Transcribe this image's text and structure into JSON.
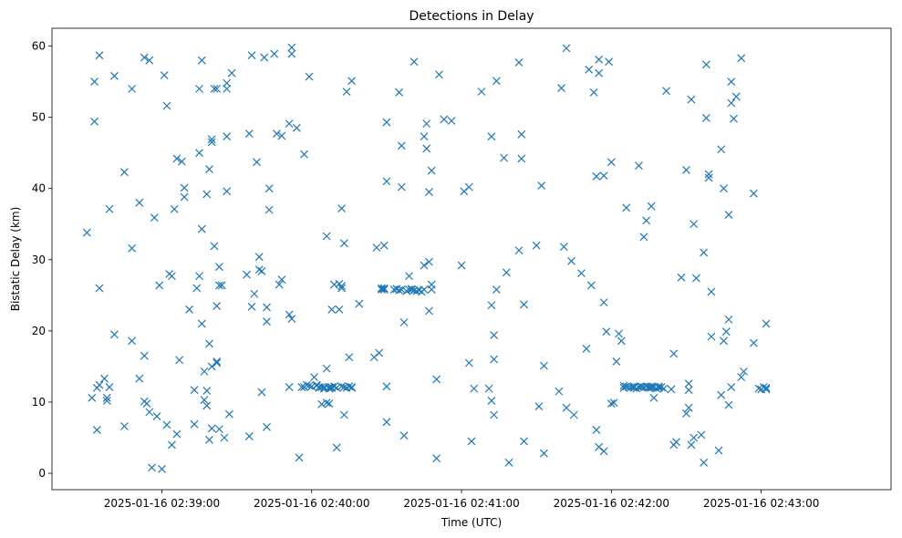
{
  "chart_data": {
    "type": "scatter",
    "title": "Detections in Delay",
    "xlabel": "Time (UTC)",
    "ylabel": "Bistatic Delay (km)",
    "x_unit": "seconds after 2025-01-16 02:38:00",
    "xlim": [
      16,
      352
    ],
    "ylim": [
      -2.3,
      62.5
    ],
    "x_ticks": [
      {
        "value": 60,
        "label": "2025-01-16 02:39:00"
      },
      {
        "value": 120,
        "label": "2025-01-16 02:40:00"
      },
      {
        "value": 180,
        "label": "2025-01-16 02:41:00"
      },
      {
        "value": 240,
        "label": "2025-01-16 02:42:00"
      },
      {
        "value": 300,
        "label": "2025-01-16 02:43:00"
      }
    ],
    "y_ticks": [
      0,
      10,
      20,
      30,
      40,
      50,
      60
    ],
    "grid": false,
    "marker": "x",
    "color": "#1f77b4",
    "points": [
      [
        30,
        33.8
      ],
      [
        32,
        10.6
      ],
      [
        33,
        49.4
      ],
      [
        33,
        55
      ],
      [
        34,
        6.1
      ],
      [
        34,
        12
      ],
      [
        35,
        12.4
      ],
      [
        35,
        26
      ],
      [
        35,
        58.7
      ],
      [
        37,
        13.3
      ],
      [
        38,
        10.6
      ],
      [
        38,
        10.2
      ],
      [
        39,
        12.1
      ],
      [
        39,
        37.1
      ],
      [
        41,
        55.8
      ],
      [
        41,
        19.5
      ],
      [
        45,
        42.3
      ],
      [
        45,
        6.6
      ],
      [
        48,
        31.6
      ],
      [
        48,
        18.6
      ],
      [
        48,
        54
      ],
      [
        51,
        13.3
      ],
      [
        51,
        38
      ],
      [
        53,
        16.5
      ],
      [
        53,
        58.4
      ],
      [
        53,
        10.1
      ],
      [
        54,
        9.8
      ],
      [
        55,
        58
      ],
      [
        55,
        8.6
      ],
      [
        56,
        0.8
      ],
      [
        57,
        35.9
      ],
      [
        58,
        8
      ],
      [
        59,
        26.4
      ],
      [
        60,
        0.6
      ],
      [
        61,
        55.9
      ],
      [
        62,
        6.8
      ],
      [
        62,
        51.6
      ],
      [
        63,
        28
      ],
      [
        64,
        27.7
      ],
      [
        64,
        4
      ],
      [
        65,
        37.1
      ],
      [
        66,
        5.5
      ],
      [
        66,
        44.2
      ],
      [
        67,
        15.9
      ],
      [
        68,
        43.8
      ],
      [
        69,
        38.8
      ],
      [
        69,
        40.1
      ],
      [
        71,
        23
      ],
      [
        73,
        6.9
      ],
      [
        73,
        11.7
      ],
      [
        74,
        26
      ],
      [
        75,
        27.7
      ],
      [
        75,
        45
      ],
      [
        75,
        54
      ],
      [
        76,
        58
      ],
      [
        76,
        34.3
      ],
      [
        76,
        21
      ],
      [
        77,
        10.3
      ],
      [
        77,
        14.3
      ],
      [
        78,
        11.6
      ],
      [
        78,
        9.5
      ],
      [
        78,
        39.2
      ],
      [
        79,
        4.7
      ],
      [
        79,
        18.2
      ],
      [
        79,
        42.7
      ],
      [
        80,
        46.9
      ],
      [
        80,
        6.3
      ],
      [
        80,
        15
      ],
      [
        80,
        46.5
      ],
      [
        81,
        54
      ],
      [
        81,
        31.9
      ],
      [
        82,
        54
      ],
      [
        82,
        15.5
      ],
      [
        82,
        15.7
      ],
      [
        82,
        23.5
      ],
      [
        83,
        26.4
      ],
      [
        83,
        29
      ],
      [
        83,
        6.2
      ],
      [
        84,
        26.4
      ],
      [
        85,
        5
      ],
      [
        86,
        54.8
      ],
      [
        86,
        54
      ],
      [
        86,
        47.3
      ],
      [
        86,
        39.6
      ],
      [
        87,
        8.3
      ],
      [
        88,
        56.2
      ],
      [
        94,
        27.9
      ],
      [
        95,
        47.7
      ],
      [
        95,
        5.2
      ],
      [
        96,
        58.7
      ],
      [
        96,
        23.4
      ],
      [
        97,
        25.2
      ],
      [
        98,
        43.7
      ],
      [
        99,
        30.4
      ],
      [
        99,
        28.6
      ],
      [
        100,
        28.4
      ],
      [
        100,
        11.4
      ],
      [
        101,
        58.4
      ],
      [
        102,
        6.5
      ],
      [
        102,
        23.3
      ],
      [
        102,
        21.3
      ],
      [
        103,
        40
      ],
      [
        103,
        37
      ],
      [
        105,
        58.9
      ],
      [
        106,
        47.7
      ],
      [
        107,
        26.5
      ],
      [
        108,
        27.2
      ],
      [
        108,
        47.4
      ],
      [
        111,
        12.1
      ],
      [
        111,
        49.1
      ],
      [
        111,
        22.3
      ],
      [
        112,
        59.8
      ],
      [
        112,
        58.9
      ],
      [
        112,
        21.7
      ],
      [
        114,
        48.5
      ],
      [
        115,
        2.2
      ],
      [
        116,
        12.1
      ],
      [
        117,
        44.8
      ],
      [
        117,
        12.1
      ],
      [
        118,
        12.4
      ],
      [
        119,
        12.3
      ],
      [
        119,
        55.7
      ],
      [
        120,
        12.2
      ],
      [
        121,
        13.5
      ],
      [
        122,
        12.4
      ],
      [
        122,
        12.3
      ],
      [
        123,
        12
      ],
      [
        123,
        12.1
      ],
      [
        124,
        9.7
      ],
      [
        124,
        12.1
      ],
      [
        125,
        11.9
      ],
      [
        125,
        12.1
      ],
      [
        126,
        9.9
      ],
      [
        126,
        33.3
      ],
      [
        126,
        14.7
      ],
      [
        127,
        12.1
      ],
      [
        127,
        11.9
      ],
      [
        127,
        9.8
      ],
      [
        128,
        12.1
      ],
      [
        128,
        23
      ],
      [
        128,
        12
      ],
      [
        129,
        26.5
      ],
      [
        129,
        12.2
      ],
      [
        130,
        3.6
      ],
      [
        130,
        12
      ],
      [
        131,
        23
      ],
      [
        131,
        26.6
      ],
      [
        132,
        37.2
      ],
      [
        132,
        26.3
      ],
      [
        132,
        26
      ],
      [
        132,
        12.2
      ],
      [
        133,
        8.2
      ],
      [
        133,
        12.1
      ],
      [
        133,
        32.3
      ],
      [
        134,
        53.6
      ],
      [
        134,
        12
      ],
      [
        135,
        12.2
      ],
      [
        135,
        16.3
      ],
      [
        136,
        55.1
      ],
      [
        136,
        12
      ],
      [
        136,
        12.1
      ],
      [
        139,
        23.8
      ],
      [
        145,
        16.3
      ],
      [
        146,
        31.7
      ],
      [
        147,
        16.9
      ],
      [
        148,
        26
      ],
      [
        148,
        25.8
      ],
      [
        149,
        26
      ],
      [
        149,
        32
      ],
      [
        149,
        25.8
      ],
      [
        150,
        49.3
      ],
      [
        150,
        41
      ],
      [
        150,
        12.2
      ],
      [
        150,
        7.2
      ],
      [
        153,
        25.8
      ],
      [
        154,
        25.9
      ],
      [
        154,
        25.9
      ],
      [
        155,
        53.5
      ],
      [
        155,
        25.7
      ],
      [
        156,
        40.2
      ],
      [
        156,
        25.8
      ],
      [
        156,
        46
      ],
      [
        157,
        5.3
      ],
      [
        157,
        21.2
      ],
      [
        158,
        25.6
      ],
      [
        159,
        27.7
      ],
      [
        159,
        25.8
      ],
      [
        160,
        25.8
      ],
      [
        160,
        25.9
      ],
      [
        161,
        57.8
      ],
      [
        161,
        25.7
      ],
      [
        162,
        25.6
      ],
      [
        163,
        25.7
      ],
      [
        164,
        25.5
      ],
      [
        165,
        29.2
      ],
      [
        165,
        25.8
      ],
      [
        165,
        47.3
      ],
      [
        166,
        45.6
      ],
      [
        166,
        49.1
      ],
      [
        167,
        39.5
      ],
      [
        167,
        29.7
      ],
      [
        167,
        22.8
      ],
      [
        168,
        42.5
      ],
      [
        168,
        26.5
      ],
      [
        168,
        25.8
      ],
      [
        170,
        13.2
      ],
      [
        170,
        2.1
      ],
      [
        171,
        56
      ],
      [
        173,
        49.7
      ],
      [
        176,
        49.5
      ],
      [
        180,
        29.2
      ],
      [
        181,
        39.6
      ],
      [
        183,
        40.2
      ],
      [
        183,
        15.5
      ],
      [
        184,
        4.5
      ],
      [
        185,
        11.9
      ],
      [
        188,
        53.6
      ],
      [
        191,
        11.9
      ],
      [
        192,
        23.6
      ],
      [
        192,
        47.3
      ],
      [
        192,
        10.2
      ],
      [
        193,
        8.2
      ],
      [
        193,
        19.4
      ],
      [
        193,
        16
      ],
      [
        194,
        55.1
      ],
      [
        194,
        25.8
      ],
      [
        197,
        44.3
      ],
      [
        198,
        28.2
      ],
      [
        199,
        1.5
      ],
      [
        203,
        57.7
      ],
      [
        203,
        31.3
      ],
      [
        204,
        47.6
      ],
      [
        204,
        44.2
      ],
      [
        205,
        23.7
      ],
      [
        205,
        4.5
      ],
      [
        210,
        32
      ],
      [
        211,
        9.4
      ],
      [
        212,
        40.4
      ],
      [
        213,
        2.8
      ],
      [
        213,
        15.1
      ],
      [
        219,
        11.5
      ],
      [
        220,
        54.1
      ],
      [
        221,
        31.8
      ],
      [
        222,
        59.7
      ],
      [
        222,
        9.2
      ],
      [
        224,
        29.8
      ],
      [
        225,
        8.2
      ],
      [
        228,
        28.1
      ],
      [
        230,
        17.5
      ],
      [
        231,
        56.7
      ],
      [
        232,
        26.4
      ],
      [
        233,
        53.5
      ],
      [
        234,
        41.7
      ],
      [
        234,
        6.1
      ],
      [
        235,
        58.1
      ],
      [
        235,
        56.2
      ],
      [
        235,
        3.7
      ],
      [
        237,
        3.1
      ],
      [
        237,
        41.8
      ],
      [
        237,
        24
      ],
      [
        238,
        19.9
      ],
      [
        239,
        57.8
      ],
      [
        240,
        9.8
      ],
      [
        240,
        43.7
      ],
      [
        241,
        9.9
      ],
      [
        242,
        15.7
      ],
      [
        243,
        19.6
      ],
      [
        244,
        18.6
      ],
      [
        245,
        12.3
      ],
      [
        245,
        12
      ],
      [
        246,
        37.3
      ],
      [
        246,
        12.2
      ],
      [
        247,
        12.1
      ],
      [
        248,
        12.1
      ],
      [
        249,
        12.2
      ],
      [
        249,
        12
      ],
      [
        250,
        11.9
      ],
      [
        251,
        12.1
      ],
      [
        251,
        43.2
      ],
      [
        252,
        12.1
      ],
      [
        252,
        12.2
      ],
      [
        253,
        12.1
      ],
      [
        253,
        33.2
      ],
      [
        254,
        12.2
      ],
      [
        254,
        35.5
      ],
      [
        255,
        12
      ],
      [
        255,
        12.1
      ],
      [
        256,
        12.2
      ],
      [
        256,
        12
      ],
      [
        256,
        37.5
      ],
      [
        257,
        10.6
      ],
      [
        257,
        12.1
      ],
      [
        258,
        11.9
      ],
      [
        259,
        12
      ],
      [
        259,
        12.2
      ],
      [
        260,
        12.1
      ],
      [
        261,
        11.9
      ],
      [
        262,
        53.7
      ],
      [
        264,
        11.8
      ],
      [
        265,
        16.8
      ],
      [
        265,
        4
      ],
      [
        266,
        4.4
      ],
      [
        268,
        27.5
      ],
      [
        270,
        42.6
      ],
      [
        270,
        8.4
      ],
      [
        271,
        12.6
      ],
      [
        271,
        9.2
      ],
      [
        271,
        11.7
      ],
      [
        272,
        52.5
      ],
      [
        272,
        4
      ],
      [
        273,
        35
      ],
      [
        273,
        5
      ],
      [
        274,
        27.4
      ],
      [
        276,
        5.4
      ],
      [
        277,
        31
      ],
      [
        277,
        1.5
      ],
      [
        278,
        57.4
      ],
      [
        278,
        49.9
      ],
      [
        279,
        41.5
      ],
      [
        279,
        42
      ],
      [
        280,
        25.5
      ],
      [
        280,
        19.2
      ],
      [
        283,
        3.2
      ],
      [
        284,
        45.5
      ],
      [
        284,
        11
      ],
      [
        285,
        40
      ],
      [
        285,
        18.6
      ],
      [
        286,
        19.9
      ],
      [
        287,
        36.3
      ],
      [
        287,
        21.6
      ],
      [
        287,
        9.6
      ],
      [
        288,
        52
      ],
      [
        288,
        55
      ],
      [
        288,
        12.1
      ],
      [
        289,
        49.8
      ],
      [
        290,
        52.9
      ],
      [
        292,
        58.3
      ],
      [
        292,
        13.5
      ],
      [
        293,
        14.3
      ],
      [
        297,
        18.3
      ],
      [
        297,
        39.3
      ],
      [
        299,
        11.9
      ],
      [
        300,
        11.8
      ],
      [
        301,
        12.1
      ],
      [
        302,
        11.8
      ],
      [
        302,
        12
      ],
      [
        302,
        21
      ]
    ]
  }
}
